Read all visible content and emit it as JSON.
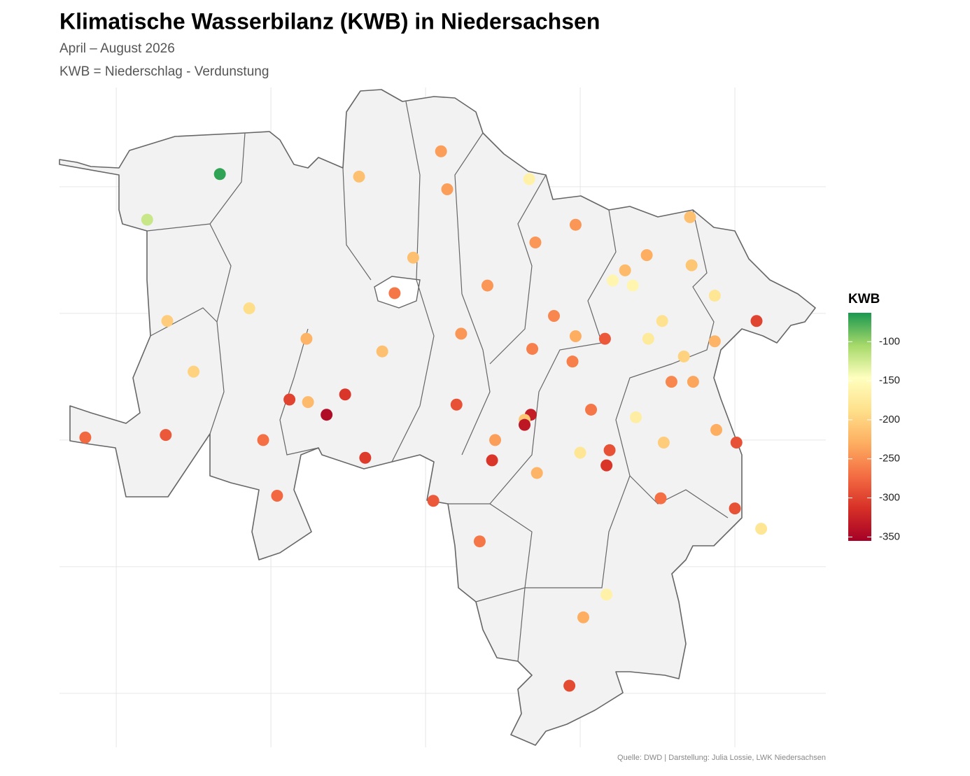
{
  "chart_data": {
    "type": "map",
    "title": "Klimatische Wasserbilanz (KWB) in Niedersachsen",
    "subtitle": "April – August 2026",
    "note": "KWB = Niederschlag - Verdunstung",
    "caption": "Quelle: DWD | Darstellung: Julia Lossie, LWK Niedersachsen",
    "legend_title": "KWB",
    "xlim": [
      6.633,
      11.588
    ],
    "ylim": [
      51.287,
      53.892
    ],
    "xticks": [
      7,
      8,
      9,
      10,
      11
    ],
    "yticks": [
      51.5,
      52,
      52.5,
      53,
      53.5
    ],
    "grid": true,
    "clim": [
      -355,
      -63
    ],
    "cticks": [
      -100,
      -150,
      -200,
      -250,
      -300,
      -350
    ],
    "colorscale": [
      "#a50026",
      "#d73027",
      "#f46d43",
      "#fdae61",
      "#fee08b",
      "#ffffbf",
      "#a6d96a",
      "#1a9850"
    ],
    "x": [
      7.67,
      7.2,
      9.1,
      8.57,
      9.14,
      9.67,
      9.97,
      10.71,
      9.71,
      8.92,
      10.43,
      10.29,
      10.72,
      10.21,
      10.34,
      8.8,
      9.4,
      7.86,
      7.33,
      10.87,
      10.53,
      11.14,
      9.83,
      9.23,
      8.23,
      9.97,
      10.16,
      10.44,
      9.69,
      8.72,
      10.87,
      9.95,
      10.67,
      7.5,
      10.59,
      10.73,
      8.48,
      8.12,
      8.24,
      8.36,
      9.2,
      10.07,
      9.68,
      9.64,
      9.64,
      10.36,
      6.8,
      7.32,
      7.95,
      9.45,
      10.54,
      10.88,
      11.01,
      10.19,
      10.0,
      8.61,
      9.43,
      10.17,
      9.72,
      8.04,
      9.05,
      10.52,
      11.0,
      11.17,
      9.35,
      10.17,
      10.02,
      9.93
    ],
    "y": [
      53.55,
      53.37,
      53.64,
      53.54,
      53.49,
      53.53,
      53.35,
      53.38,
      53.28,
      53.22,
      53.23,
      53.17,
      53.19,
      53.13,
      53.11,
      53.08,
      53.11,
      53.02,
      52.97,
      53.07,
      52.97,
      52.97,
      52.99,
      52.92,
      52.9,
      52.91,
      52.9,
      52.9,
      52.86,
      52.85,
      52.89,
      52.81,
      52.83,
      52.77,
      52.73,
      52.73,
      52.68,
      52.66,
      52.65,
      52.6,
      52.64,
      52.62,
      52.6,
      52.58,
      52.56,
      52.59,
      52.51,
      52.52,
      52.5,
      52.5,
      52.49,
      52.54,
      52.49,
      52.46,
      52.45,
      52.43,
      52.42,
      52.4,
      52.37,
      52.28,
      52.26,
      52.27,
      52.23,
      52.15,
      52.1,
      51.89,
      51.8,
      51.53
    ],
    "values": [
      -70,
      -120,
      -240,
      -215,
      -240,
      -165,
      -245,
      -215,
      -245,
      -215,
      -230,
      -220,
      -210,
      -160,
      -160,
      -265,
      -245,
      -190,
      -205,
      -180,
      -185,
      -300,
      -255,
      -245,
      -225,
      -230,
      -285,
      -175,
      -260,
      -215,
      -225,
      -260,
      -200,
      -200,
      -255,
      -235,
      -310,
      -300,
      -220,
      -345,
      -290,
      -265,
      -330,
      -210,
      -335,
      -170,
      -275,
      -285,
      -270,
      -240,
      -205,
      -230,
      -290,
      -290,
      -180,
      -305,
      -310,
      -310,
      -225,
      -275,
      -285,
      -270,
      -290,
      -180,
      -265,
      -165,
      -230,
      -295
    ]
  }
}
